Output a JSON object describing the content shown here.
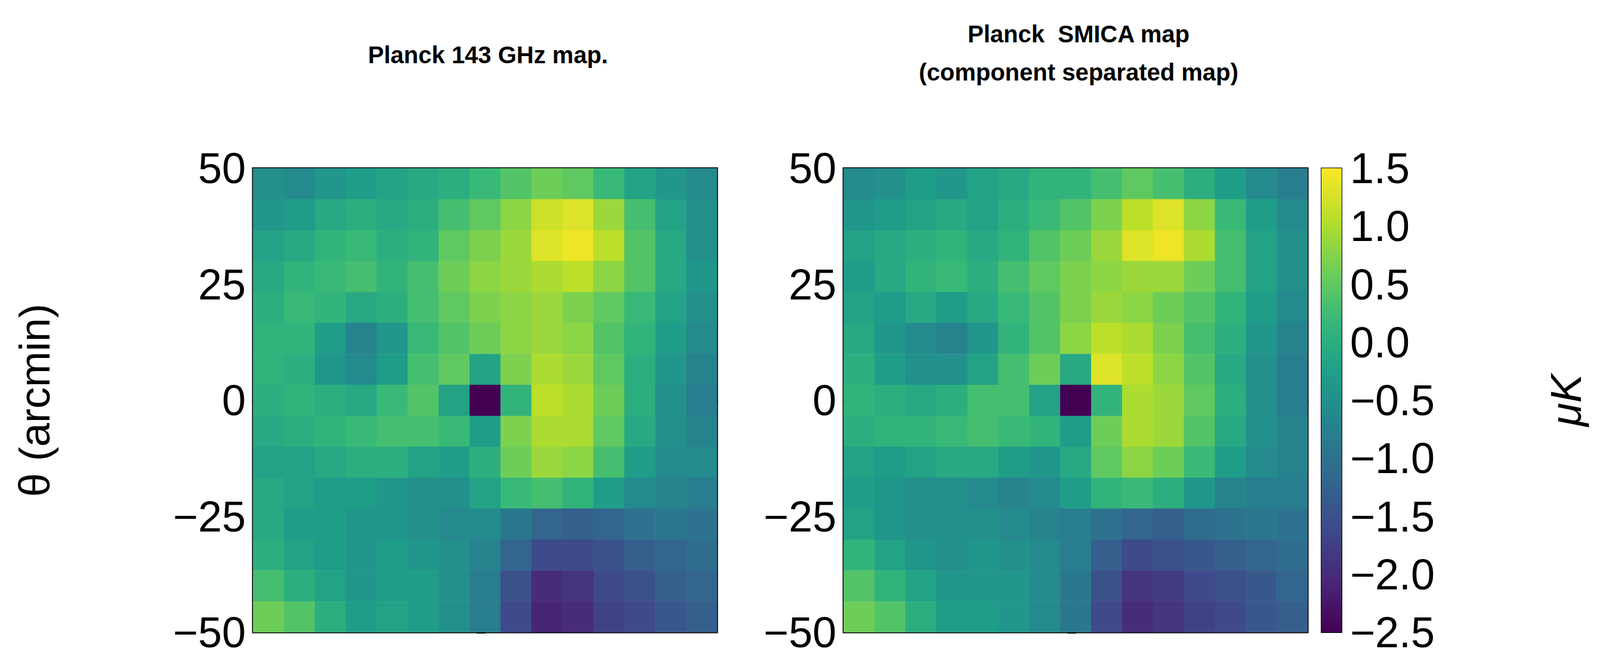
{
  "chart_data": [
    {
      "type": "heatmap",
      "title": "Planck 143 GHz map.",
      "ylabel": "θ (arcmin)",
      "xlim": [
        -50,
        50
      ],
      "ylim": [
        -50,
        50
      ],
      "yticks": [
        {
          "value": -50,
          "label": "−50"
        },
        {
          "value": -25,
          "label": "−25"
        },
        0,
        25,
        50
      ],
      "tick_labels": "y",
      "cells": [
        [
          -0.5,
          -0.6,
          -0.4,
          -0.3,
          -0.2,
          -0.1,
          0.0,
          0.2,
          0.4,
          0.6,
          0.5,
          0.2,
          -0.2,
          -0.4,
          -0.6
        ],
        [
          -0.4,
          -0.3,
          -0.1,
          0.0,
          -0.1,
          0.0,
          0.3,
          0.5,
          0.8,
          1.2,
          1.3,
          0.9,
          0.3,
          -0.2,
          -0.5
        ],
        [
          -0.2,
          -0.1,
          0.1,
          0.2,
          0.0,
          0.1,
          0.5,
          0.7,
          0.9,
          1.3,
          1.4,
          1.1,
          0.4,
          -0.1,
          -0.5
        ],
        [
          -0.1,
          0.1,
          0.2,
          0.3,
          0.1,
          0.3,
          0.6,
          0.8,
          0.9,
          1.0,
          1.1,
          0.8,
          0.4,
          -0.1,
          -0.4
        ],
        [
          0.0,
          0.2,
          0.1,
          -0.1,
          0.0,
          0.3,
          0.5,
          0.7,
          0.8,
          0.9,
          0.7,
          0.5,
          0.2,
          -0.2,
          -0.5
        ],
        [
          0.1,
          0.1,
          -0.3,
          -0.7,
          -0.4,
          0.2,
          0.4,
          0.6,
          0.8,
          0.9,
          0.8,
          0.4,
          0.1,
          -0.3,
          -0.6
        ],
        [
          0.1,
          0.0,
          -0.4,
          -0.6,
          -0.3,
          0.3,
          0.5,
          -0.2,
          0.7,
          1.0,
          0.9,
          0.5,
          0.0,
          -0.4,
          -0.7
        ],
        [
          0.0,
          0.1,
          0.0,
          -0.1,
          0.2,
          0.4,
          -0.2,
          -2.5,
          0.1,
          1.1,
          1.0,
          0.6,
          0.0,
          -0.5,
          -0.8
        ],
        [
          -0.1,
          0.0,
          0.1,
          0.2,
          0.3,
          0.3,
          0.2,
          -0.3,
          0.7,
          1.0,
          1.0,
          0.5,
          -0.1,
          -0.5,
          -0.7
        ],
        [
          -0.2,
          -0.2,
          -0.1,
          0.0,
          0.0,
          -0.2,
          -0.3,
          0.0,
          0.6,
          0.9,
          0.8,
          0.3,
          -0.3,
          -0.6,
          -0.6
        ],
        [
          -0.1,
          -0.2,
          -0.3,
          -0.3,
          -0.4,
          -0.5,
          -0.5,
          -0.2,
          0.2,
          0.3,
          0.1,
          -0.3,
          -0.6,
          -0.7,
          -0.8
        ],
        [
          -0.1,
          -0.3,
          -0.3,
          -0.4,
          -0.4,
          -0.5,
          -0.6,
          -0.6,
          -0.9,
          -1.2,
          -1.3,
          -1.2,
          -1.0,
          -0.9,
          -1.0
        ],
        [
          0.0,
          -0.2,
          -0.3,
          -0.4,
          -0.3,
          -0.4,
          -0.5,
          -0.7,
          -1.2,
          -1.6,
          -1.6,
          -1.5,
          -1.3,
          -1.2,
          -1.1
        ],
        [
          0.3,
          0.0,
          -0.2,
          -0.4,
          -0.3,
          -0.3,
          -0.5,
          -0.8,
          -1.5,
          -2.0,
          -1.9,
          -1.6,
          -1.5,
          -1.3,
          -1.2
        ],
        [
          0.6,
          0.4,
          0.0,
          -0.3,
          -0.2,
          -0.3,
          -0.5,
          -0.8,
          -1.6,
          -2.1,
          -2.0,
          -1.7,
          -1.6,
          -1.4,
          -1.3
        ]
      ]
    },
    {
      "type": "heatmap",
      "title": "Planck  SMICA map\n(component separated map)",
      "xlim": [
        -50,
        50
      ],
      "ylim": [
        -50,
        50
      ],
      "yticks": [
        {
          "value": -50,
          "label": "−50"
        },
        {
          "value": -25,
          "label": "−25"
        },
        0,
        25,
        50
      ],
      "tick_labels": "y",
      "cells": [
        [
          -0.6,
          -0.5,
          -0.3,
          -0.4,
          -0.2,
          -0.1,
          0.1,
          0.1,
          0.3,
          0.5,
          0.3,
          0.0,
          -0.3,
          -0.6,
          -0.8
        ],
        [
          -0.4,
          -0.3,
          -0.2,
          -0.1,
          -0.2,
          0.0,
          0.2,
          0.4,
          0.7,
          1.1,
          1.3,
          0.8,
          0.2,
          -0.3,
          -0.6
        ],
        [
          -0.2,
          -0.1,
          0.0,
          0.1,
          -0.1,
          0.1,
          0.4,
          0.6,
          0.9,
          1.3,
          1.4,
          1.0,
          0.3,
          -0.2,
          -0.5
        ],
        [
          -0.3,
          -0.1,
          0.1,
          0.2,
          0.0,
          0.3,
          0.5,
          0.7,
          0.8,
          0.9,
          0.9,
          0.6,
          0.3,
          -0.2,
          -0.5
        ],
        [
          -0.2,
          -0.3,
          -0.1,
          -0.3,
          -0.1,
          0.2,
          0.4,
          0.7,
          0.9,
          0.8,
          0.6,
          0.4,
          0.1,
          -0.3,
          -0.6
        ],
        [
          -0.1,
          -0.4,
          -0.6,
          -0.7,
          -0.4,
          0.1,
          0.4,
          0.8,
          1.1,
          1.0,
          0.7,
          0.3,
          0.0,
          -0.4,
          -0.7
        ],
        [
          0.0,
          -0.3,
          -0.5,
          -0.5,
          -0.2,
          0.3,
          0.6,
          -0.1,
          1.3,
          1.1,
          0.8,
          0.4,
          -0.1,
          -0.5,
          -0.8
        ],
        [
          0.1,
          0.0,
          -0.1,
          0.0,
          0.3,
          0.3,
          -0.2,
          -2.5,
          0.1,
          1.0,
          0.9,
          0.5,
          0.0,
          -0.5,
          -0.8
        ],
        [
          0.0,
          0.1,
          0.1,
          0.2,
          0.3,
          0.2,
          0.1,
          -0.3,
          0.6,
          1.0,
          0.9,
          0.4,
          -0.1,
          -0.5,
          -0.7
        ],
        [
          -0.2,
          -0.3,
          -0.2,
          -0.1,
          -0.1,
          -0.3,
          -0.4,
          -0.1,
          0.5,
          0.8,
          0.6,
          0.2,
          -0.3,
          -0.6,
          -0.7
        ],
        [
          -0.3,
          -0.4,
          -0.5,
          -0.5,
          -0.6,
          -0.7,
          -0.6,
          -0.3,
          0.1,
          0.2,
          0.0,
          -0.4,
          -0.7,
          -0.8,
          -0.8
        ],
        [
          -0.2,
          -0.4,
          -0.5,
          -0.5,
          -0.5,
          -0.6,
          -0.7,
          -0.8,
          -1.0,
          -1.2,
          -1.3,
          -1.1,
          -1.0,
          -0.9,
          -1.0
        ],
        [
          0.1,
          -0.2,
          -0.4,
          -0.5,
          -0.4,
          -0.5,
          -0.6,
          -0.8,
          -1.3,
          -1.6,
          -1.5,
          -1.4,
          -1.3,
          -1.2,
          -1.1
        ],
        [
          0.4,
          0.1,
          -0.2,
          -0.4,
          -0.4,
          -0.4,
          -0.6,
          -0.9,
          -1.5,
          -1.9,
          -1.8,
          -1.6,
          -1.5,
          -1.4,
          -1.2
        ],
        [
          0.6,
          0.4,
          0.0,
          -0.3,
          -0.3,
          -0.4,
          -0.6,
          -0.9,
          -1.6,
          -2.0,
          -1.9,
          -1.7,
          -1.6,
          -1.4,
          -1.3
        ]
      ],
      "colorbar": {
        "label": "μK",
        "range": [
          -2.5,
          1.5
        ],
        "ticks": [
          1.5,
          {
            "value": 1,
            "label": "1.0"
          },
          0.5,
          {
            "value": 0,
            "label": "0.0"
          },
          {
            "value": -0.5,
            "label": "−0.5"
          },
          {
            "value": -1,
            "label": "−1.0"
          },
          {
            "value": -1.5,
            "label": "−1.5"
          },
          {
            "value": -2,
            "label": "−2.0"
          },
          {
            "value": -2.5,
            "label": "−2.5"
          }
        ]
      }
    }
  ]
}
